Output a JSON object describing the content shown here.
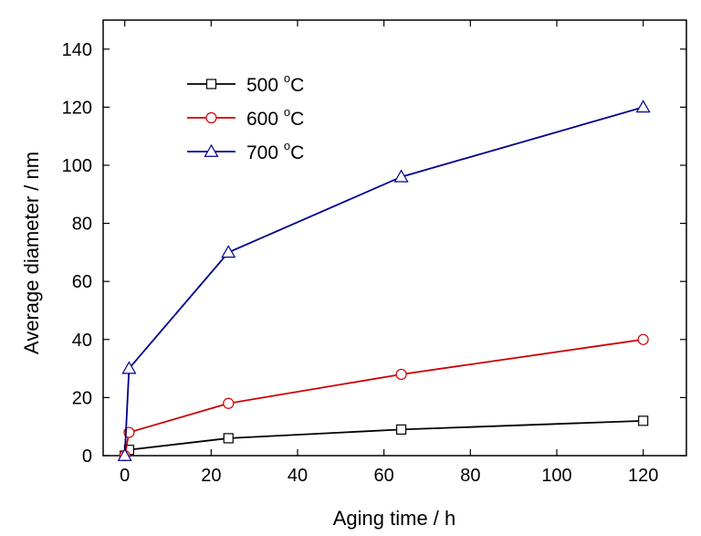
{
  "chart_data": {
    "type": "line",
    "xlabel": "Aging time / h",
    "ylabel": "Average diameter / nm",
    "xlim": [
      -5,
      130
    ],
    "ylim": [
      0,
      150
    ],
    "xticks": [
      0,
      20,
      40,
      60,
      80,
      100,
      120
    ],
    "yticks": [
      0,
      20,
      40,
      60,
      80,
      100,
      120,
      140
    ],
    "x_tick_labels": [
      "0",
      "20",
      "40",
      "60",
      "80",
      "100",
      "120"
    ],
    "y_tick_labels": [
      "0",
      "20",
      "40",
      "60",
      "80",
      "100",
      "120",
      "140"
    ],
    "legend_position": "top-left",
    "grid": false,
    "series": [
      {
        "name": "500 °C",
        "legend_main": "500 ",
        "legend_sup": "o",
        "legend_unit": "C",
        "color": "#000000",
        "marker": "square",
        "x": [
          0,
          1,
          24,
          64,
          120
        ],
        "y": [
          0,
          2,
          6,
          9,
          12
        ]
      },
      {
        "name": "600 °C",
        "legend_main": "600 ",
        "legend_sup": "o",
        "legend_unit": "C",
        "color": "#cc0000",
        "marker": "circle",
        "x": [
          0,
          1,
          24,
          64,
          120
        ],
        "y": [
          0,
          8,
          18,
          28,
          40
        ]
      },
      {
        "name": "700 °C",
        "legend_main": "700 ",
        "legend_sup": "o",
        "legend_unit": "C",
        "color": "#00008b",
        "marker": "triangle",
        "x": [
          0,
          1,
          24,
          64,
          120
        ],
        "y": [
          0,
          30,
          70,
          96,
          120
        ]
      }
    ]
  }
}
